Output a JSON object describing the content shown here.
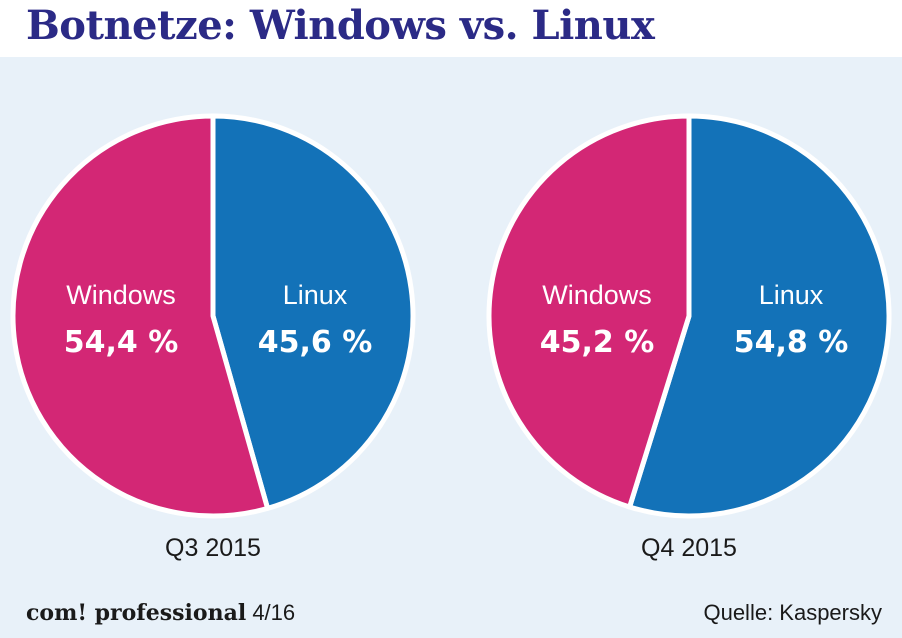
{
  "title": "Botnetze: Windows vs. Linux",
  "colors": {
    "windows": "#d32775",
    "linux": "#1372b8",
    "background": "#e8f1f9",
    "title": "#2b2a86"
  },
  "chart_data": [
    {
      "type": "pie",
      "caption": "Q3 2015",
      "slices": [
        {
          "name": "Windows",
          "value": 54.4,
          "label": "54,4 %"
        },
        {
          "name": "Linux",
          "value": 45.6,
          "label": "45,6 %"
        }
      ]
    },
    {
      "type": "pie",
      "caption": "Q4 2015",
      "slices": [
        {
          "name": "Windows",
          "value": 45.2,
          "label": "45,2 %"
        },
        {
          "name": "Linux",
          "value": 54.8,
          "label": "54,8 %"
        }
      ]
    }
  ],
  "footer": {
    "brand": "com! professional",
    "issue": "4/16",
    "source": "Quelle: Kaspersky"
  }
}
